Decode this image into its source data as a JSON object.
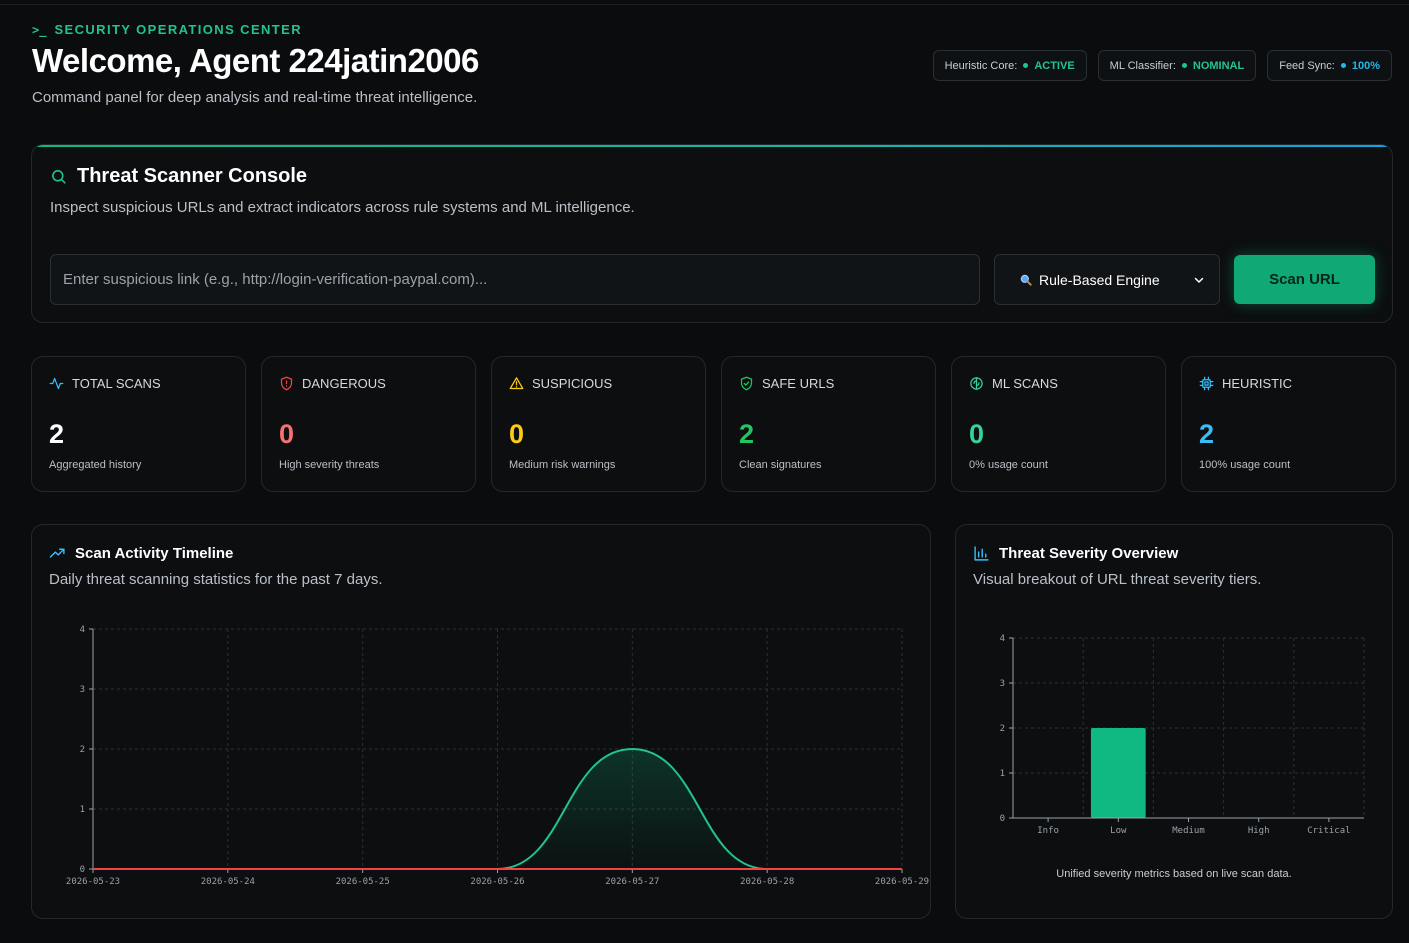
{
  "header": {
    "eyebrow": "SECURITY OPERATIONS CENTER",
    "title": "Welcome, Agent 224jatin2006",
    "subtitle": "Command panel for deep analysis and real-time threat intelligence."
  },
  "status_pills": [
    {
      "label": "Heuristic Core:",
      "value": "ACTIVE",
      "color": "#22c38e"
    },
    {
      "label": "ML Classifier:",
      "value": "NOMINAL",
      "color": "#22c38e"
    },
    {
      "label": "Feed Sync:",
      "value": "100%",
      "color": "#22b8e8"
    }
  ],
  "scanner": {
    "title": "Threat Scanner Console",
    "subtitle": "Inspect suspicious URLs and extract indicators across rule systems and ML intelligence.",
    "input_placeholder": "Enter suspicious link (e.g., http://login-verification-paypal.com)...",
    "input_value": "",
    "engine_selected": "Rule-Based Engine",
    "scan_button": "Scan URL"
  },
  "stats": [
    {
      "title": "TOTAL SCANS",
      "value": "2",
      "note": "Aggregated history",
      "icon": "activity-icon",
      "color": "#ffffff",
      "icon_color": "#38bdf8"
    },
    {
      "title": "DANGEROUS",
      "value": "0",
      "note": "High severity threats",
      "icon": "shield-alert-icon",
      "color": "#f87171",
      "icon_color": "#ef4444"
    },
    {
      "title": "SUSPICIOUS",
      "value": "0",
      "note": "Medium risk warnings",
      "icon": "warning-icon",
      "color": "#facc15",
      "icon_color": "#facc15"
    },
    {
      "title": "SAFE URLS",
      "value": "2",
      "note": "Clean signatures",
      "icon": "shield-check-icon",
      "color": "#22c55e",
      "icon_color": "#22c55e"
    },
    {
      "title": "ML SCANS",
      "value": "0",
      "note": "0% usage count",
      "icon": "brain-icon",
      "color": "#34d399",
      "icon_color": "#34d399"
    },
    {
      "title": "HEURISTIC",
      "value": "2",
      "note": "100% usage count",
      "icon": "cpu-icon",
      "color": "#38bdf8",
      "icon_color": "#38bdf8"
    }
  ],
  "timeline": {
    "title": "Scan Activity Timeline",
    "subtitle": "Daily threat scanning statistics for the past 7 days."
  },
  "severity": {
    "title": "Threat Severity Overview",
    "subtitle": "Visual breakout of URL threat severity tiers.",
    "note": "Unified severity metrics based on live scan data."
  },
  "chart_data": [
    {
      "type": "area",
      "x": [
        "2026-05-23",
        "2026-05-24",
        "2026-05-25",
        "2026-05-26",
        "2026-05-27",
        "2026-05-28",
        "2026-05-29"
      ],
      "series": [
        {
          "values": [
            0,
            0,
            0,
            0,
            2,
            0,
            0
          ],
          "color": "#22c38e"
        },
        {
          "values": [
            0,
            0,
            0,
            0,
            0,
            0,
            0
          ],
          "color": "#ef4444"
        }
      ],
      "ylim": [
        0,
        4
      ],
      "yticks": [
        0,
        1,
        2,
        3,
        4
      ],
      "grid": true
    },
    {
      "type": "bar",
      "categories": [
        "Info",
        "Low",
        "Medium",
        "High",
        "Critical"
      ],
      "values": [
        0,
        2,
        0,
        0,
        0
      ],
      "ylim": [
        0,
        4
      ],
      "yticks": [
        0,
        1,
        2,
        3,
        4
      ],
      "color": "#10b981",
      "grid": true
    }
  ]
}
